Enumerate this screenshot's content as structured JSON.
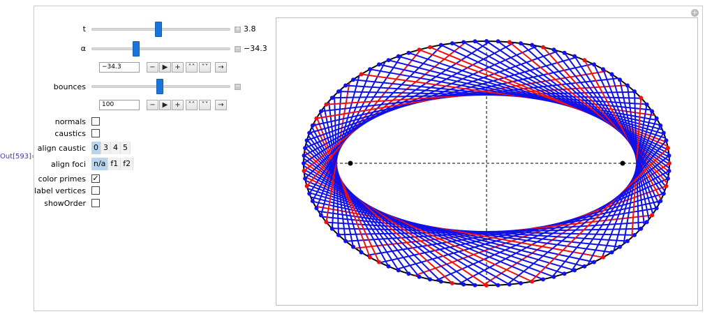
{
  "out_label": "Out[593]=",
  "corner_plus": "+",
  "controls": {
    "t": {
      "label": "t",
      "value": "3.8",
      "fraction": 0.48
    },
    "alpha": {
      "label": "α",
      "value": "−34.3",
      "fraction": 0.31,
      "field": "−34.3"
    },
    "bounces": {
      "label": "bounces",
      "value": "",
      "fraction": 0.49,
      "field": "100"
    },
    "expander_open": "+",
    "expander_close": "−",
    "anim_buttons": [
      "−",
      "▶",
      "+",
      "˄˄",
      "˅˅",
      "→"
    ]
  },
  "checkboxes": [
    {
      "name": "normals",
      "label": "normals",
      "checked": false
    },
    {
      "name": "caustics",
      "label": "caustics",
      "checked": false
    }
  ],
  "align_caustic": {
    "label": "align caustic",
    "options": [
      "0",
      "3",
      "4",
      "5"
    ],
    "selected": 0
  },
  "align_foci": {
    "label": "align foci",
    "options": [
      "n/a",
      "f1",
      "f2"
    ],
    "selected": 0
  },
  "checkboxes2": [
    {
      "name": "color-primes",
      "label": "color primes",
      "checked": true,
      "mark": "✓"
    },
    {
      "name": "label-vertices",
      "label": "label vertices",
      "checked": false,
      "mark": ""
    },
    {
      "name": "show-order",
      "label": "showOrder",
      "checked": false,
      "mark": ""
    }
  ],
  "plot": {
    "ellipse_color": "#000000",
    "blue": "#1010e8",
    "red": "#ee1010",
    "n_points": 100
  }
}
